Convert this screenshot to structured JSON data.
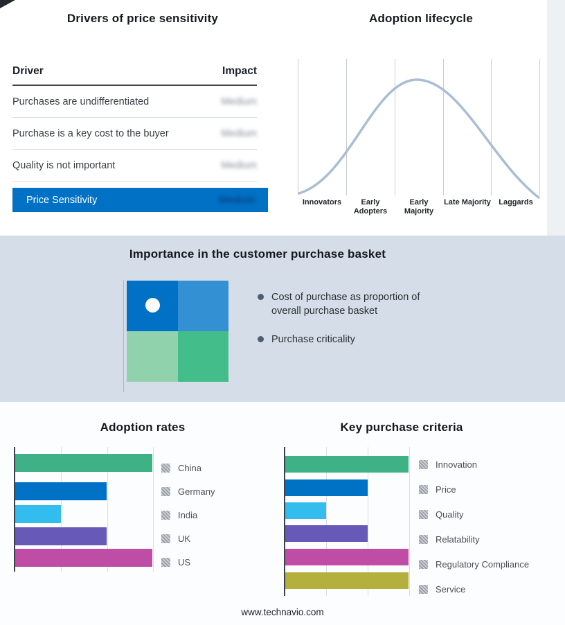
{
  "meta": {
    "footer": "www.technavio.com"
  },
  "drivers": {
    "title": "Drivers of price sensitivity",
    "columns": {
      "driver": "Driver",
      "impact": "Impact"
    },
    "rows": [
      {
        "driver": "Purchases are undifferentiated",
        "impact": "Medium"
      },
      {
        "driver": "Purchase is a key cost to the buyer",
        "impact": "Medium"
      },
      {
        "driver": "Quality is not important",
        "impact": "Medium"
      }
    ],
    "summary": {
      "label": "Price Sensitivity",
      "impact": "Medium"
    },
    "accent_color": "#0071c5"
  },
  "basket": {
    "title": "Importance in the customer purchase basket",
    "bullets": [
      "Cost of purchase as proportion of overall purchase basket",
      "Purchase criticality"
    ],
    "quadrant_colors": [
      "#0071c5",
      "#3391d3",
      "#8fd2ac",
      "#43bd8a"
    ]
  },
  "chart_data": [
    {
      "id": "adoption-lifecycle",
      "type": "line",
      "title": "Adoption lifecycle",
      "categories": [
        "Innovators",
        "Early Adopters",
        "Early Majority",
        "Late Majority",
        "Laggards"
      ],
      "values": [
        0.05,
        0.5,
        1.0,
        0.5,
        0.05
      ],
      "curve_color": "#a9bdd4",
      "grid": true,
      "xlabel": "",
      "ylabel": ""
    },
    {
      "id": "adoption-rates",
      "type": "bar",
      "title": "Adoption rates",
      "orientation": "horizontal",
      "categories": [
        "China",
        "Germany",
        "India",
        "UK",
        "US"
      ],
      "values": [
        3,
        2,
        1,
        2,
        3
      ],
      "xlim": [
        0,
        3
      ],
      "colors": [
        "#3eb286",
        "#0072c6",
        "#33bdee",
        "#6659b8",
        "#bf4da6"
      ],
      "legend_position": "right",
      "grid": true
    },
    {
      "id": "key-purchase-criteria",
      "type": "bar",
      "title": "Key purchase criteria",
      "orientation": "horizontal",
      "categories": [
        "Innovation",
        "Price",
        "Quality",
        "Relatability",
        "Regulatory Compliance",
        "Service"
      ],
      "values": [
        3,
        2,
        1,
        2,
        3,
        3
      ],
      "xlim": [
        0,
        3
      ],
      "colors": [
        "#3eb286",
        "#0072c6",
        "#33bdee",
        "#6659b8",
        "#bf4da6",
        "#b3b03e"
      ],
      "legend_position": "right",
      "grid": true
    }
  ]
}
